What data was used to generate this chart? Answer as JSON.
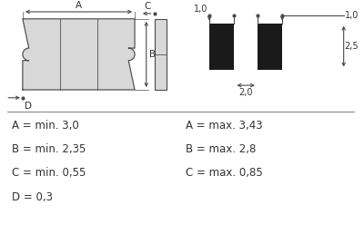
{
  "bg_color": "#ffffff",
  "line_color": "#4a4a4a",
  "fill_color": "#d8d8d8",
  "black_fill": "#1a1a1a",
  "text_color": "#333333",
  "dim_labels_left": [
    "A = min. 3,0",
    "B = min. 2,35",
    "C = min. 0,55",
    "D = 0,3"
  ],
  "dim_labels_right": [
    "A = max. 3,43",
    "B = max. 2,8",
    "C = max. 0,85",
    ""
  ]
}
